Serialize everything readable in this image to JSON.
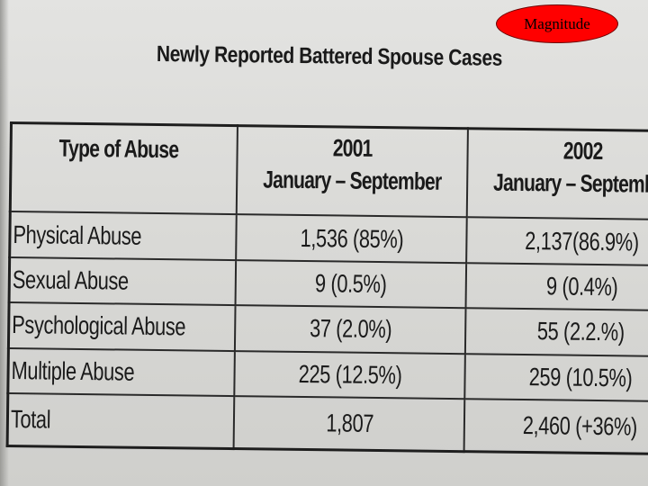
{
  "slide": {
    "badge_label": "Magnitude",
    "badge_color": "#ff0000"
  },
  "document": {
    "title": "Newly Reported Battered Spouse Cases",
    "table": {
      "headers": {
        "type": "Type of Abuse",
        "col1_year": "2001",
        "col1_period": "January – September",
        "col2_year": "2002",
        "col2_period": "January – September"
      },
      "rows": [
        {
          "type": "Physical Abuse",
          "y2001": "1,536 (85%)",
          "y2002": "2,137(86.9%)"
        },
        {
          "type": "Sexual Abuse",
          "y2001": "9 (0.5%)",
          "y2002": "9 (0.4%)"
        },
        {
          "type": "Psychological Abuse",
          "y2001": "37 (2.0%)",
          "y2002": "55 (2.2.%)"
        },
        {
          "type": "Multiple Abuse",
          "y2001": "225 (12.5%)",
          "y2002": "259 (10.5%)"
        },
        {
          "type": "Total",
          "y2001": "1,807",
          "y2002": "2,460 (+36%)"
        }
      ]
    }
  }
}
